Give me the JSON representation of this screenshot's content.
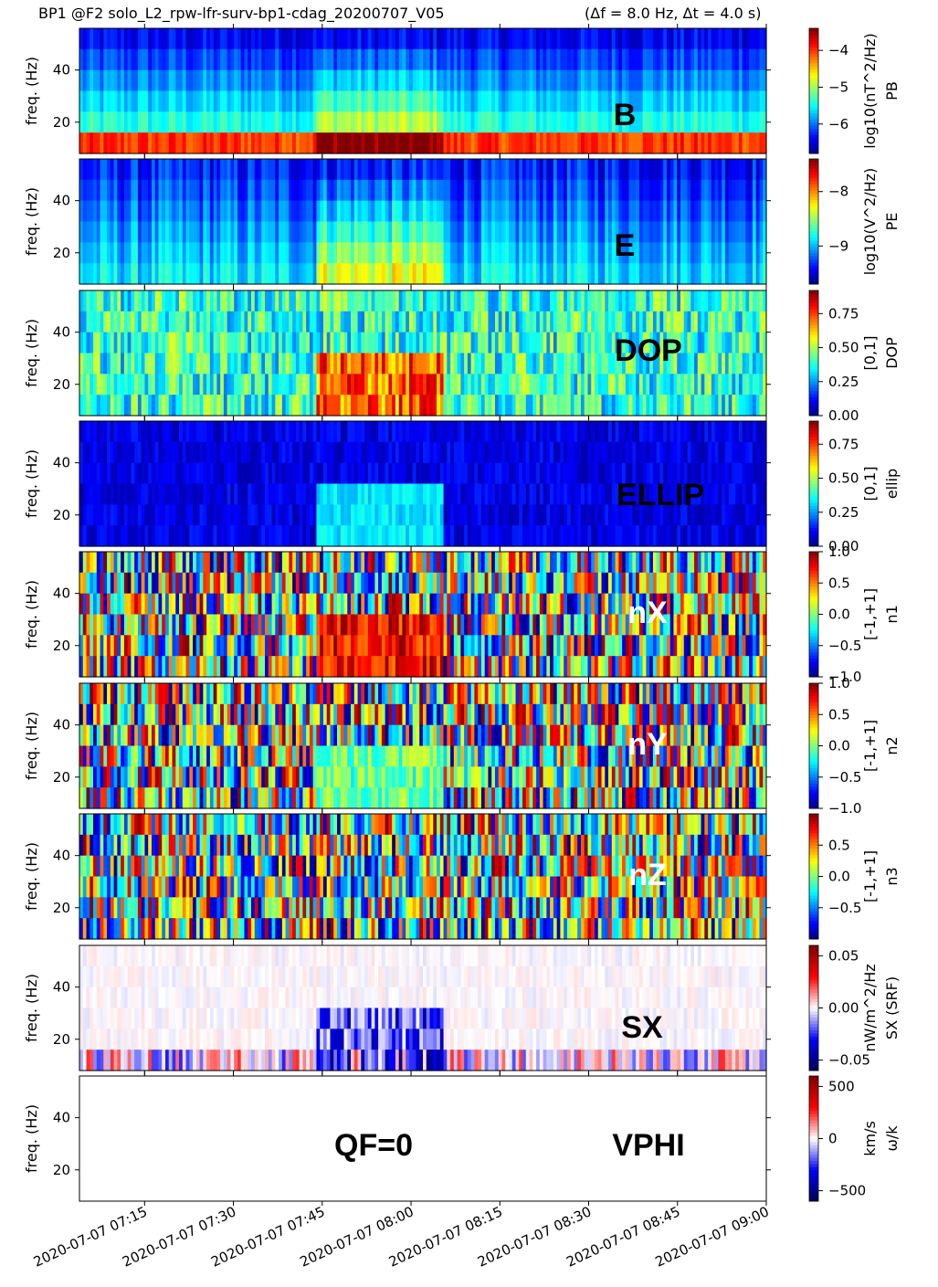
{
  "figure_title": "BP1 @F2 solo_L2_rpw-lfr-surv-bp1-cdag_20200707_V05",
  "figure_subtitle": "(Δf = 8.0 Hz, Δt = 4.0 s)",
  "colors": {
    "jet": [
      "#000080",
      "#0000ff",
      "#0080ff",
      "#00ffff",
      "#80ff80",
      "#ffff00",
      "#ff8000",
      "#ff0000",
      "#800000"
    ],
    "seismic": [
      "#00004c",
      "#0000ff",
      "#ffffff",
      "#ff0000",
      "#7f0000"
    ]
  },
  "chart_data": [
    {
      "type": "heatmap",
      "panel_label": "B",
      "label_color": "#000000",
      "ylabel": "freq. (Hz)",
      "yticks": [
        "20",
        "40"
      ],
      "ylim": [
        8,
        56
      ],
      "colormap": "jet",
      "cbar_label": "log10(nT^2/Hz)",
      "cbar_sub": "PB",
      "cbar_ticks": [
        "−6",
        "−5",
        "−4"
      ],
      "cbar_range": [
        -6.8,
        -3.4
      ],
      "cbar_tick_values": [
        -6,
        -5,
        -4
      ]
    },
    {
      "type": "heatmap",
      "panel_label": "E",
      "label_color": "#000000",
      "ylabel": "freq. (Hz)",
      "yticks": [
        "20",
        "40"
      ],
      "ylim": [
        8,
        56
      ],
      "colormap": "jet",
      "cbar_label": "log10(V^2/Hz)",
      "cbar_sub": "PE",
      "cbar_ticks": [
        "−9",
        "−8"
      ],
      "cbar_range": [
        -9.7,
        -7.4
      ],
      "cbar_tick_values": [
        -9,
        -8
      ]
    },
    {
      "type": "heatmap",
      "panel_label": "DOP",
      "label_color": "#000000",
      "ylabel": "freq. (Hz)",
      "yticks": [
        "20",
        "40"
      ],
      "ylim": [
        8,
        56
      ],
      "colormap": "jet",
      "cbar_label": "[0,1]",
      "cbar_sub": "DOP",
      "cbar_ticks": [
        "0.00",
        "0.25",
        "0.50",
        "0.75"
      ],
      "cbar_range": [
        0,
        0.92
      ],
      "cbar_tick_values": [
        0,
        0.25,
        0.5,
        0.75
      ]
    },
    {
      "type": "heatmap",
      "panel_label": "ELLIP",
      "label_color": "#000000",
      "ylabel": "freq. (Hz)",
      "yticks": [
        "20",
        "40"
      ],
      "ylim": [
        8,
        56
      ],
      "colormap": "jet",
      "cbar_label": "[0,1]",
      "cbar_sub": "ellip",
      "cbar_ticks": [
        "0.00",
        "0.25",
        "0.50",
        "0.75"
      ],
      "cbar_range": [
        0,
        0.92
      ],
      "cbar_tick_values": [
        0,
        0.25,
        0.5,
        0.75
      ]
    },
    {
      "type": "heatmap",
      "panel_label": "nX",
      "label_color": "#ffffff",
      "ylabel": "freq. (Hz)",
      "yticks": [
        "20",
        "40"
      ],
      "ylim": [
        8,
        56
      ],
      "colormap": "jet",
      "cbar_label": "[-1,+1]",
      "cbar_sub": "n1",
      "cbar_ticks": [
        "−1.0",
        "−0.5",
        "0.0",
        "0.5",
        "1.0"
      ],
      "cbar_range": [
        -1,
        1
      ],
      "cbar_tick_values": [
        -1,
        -0.5,
        0,
        0.5,
        1
      ]
    },
    {
      "type": "heatmap",
      "panel_label": "nY",
      "label_color": "#ffffff",
      "ylabel": "freq. (Hz)",
      "yticks": [
        "20",
        "40"
      ],
      "ylim": [
        8,
        56
      ],
      "colormap": "jet",
      "cbar_label": "[-1,+1]",
      "cbar_sub": "n2",
      "cbar_ticks": [
        "−1.0",
        "−0.5",
        "0.0",
        "0.5",
        "1.0"
      ],
      "cbar_range": [
        -1,
        1
      ],
      "cbar_tick_values": [
        -1,
        -0.5,
        0,
        0.5,
        1
      ]
    },
    {
      "type": "heatmap",
      "panel_label": "nZ",
      "label_color": "#ffffff",
      "ylabel": "freq. (Hz)",
      "yticks": [
        "20",
        "40"
      ],
      "ylim": [
        8,
        56
      ],
      "colormap": "jet",
      "cbar_label": "[-1,+1]",
      "cbar_sub": "n3",
      "cbar_ticks": [
        "−0.5",
        "0.0",
        "0.5"
      ],
      "cbar_range": [
        -1,
        1
      ],
      "cbar_tick_values": [
        -0.5,
        0,
        0.5
      ]
    },
    {
      "type": "heatmap",
      "panel_label": "SX",
      "label_color": "#000000",
      "ylabel": "freq. (Hz)",
      "yticks": [
        "20",
        "40"
      ],
      "ylim": [
        8,
        56
      ],
      "colormap": "seismic",
      "cbar_label": "nW/m^2/Hz",
      "cbar_sub": "SX (SRF)",
      "cbar_ticks": [
        "−0.05",
        "0.00",
        "0.05"
      ],
      "cbar_range": [
        -0.06,
        0.06
      ],
      "cbar_tick_values": [
        -0.05,
        0,
        0.05
      ]
    },
    {
      "type": "heatmap",
      "panel_label": "VPHI",
      "label_color": "#000000",
      "extra_label": "QF=0",
      "ylabel": "freq. (Hz)",
      "yticks": [
        "20",
        "40"
      ],
      "ylim": [
        8,
        56
      ],
      "colormap": "seismic",
      "cbar_label": "km/s",
      "cbar_sub": "ω/k",
      "cbar_ticks": [
        "−500",
        "0",
        "500"
      ],
      "cbar_range": [
        -600,
        600
      ],
      "cbar_tick_values": [
        -500,
        0,
        500
      ]
    }
  ],
  "x_axis": {
    "range": [
      "2020-07-07 07:04",
      "2020-07-07 09:00"
    ],
    "ticks": [
      "2020-07-07 07:15",
      "2020-07-07 07:30",
      "2020-07-07 07:45",
      "2020-07-07 08:00",
      "2020-07-07 08:15",
      "2020-07-07 08:30",
      "2020-07-07 08:45",
      "2020-07-07 09:00"
    ],
    "event_window": [
      "2020-07-07 07:44",
      "2020-07-07 08:05"
    ]
  }
}
